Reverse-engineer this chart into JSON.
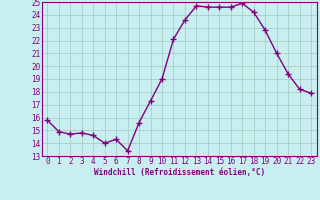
{
  "x": [
    0,
    1,
    2,
    3,
    4,
    5,
    6,
    7,
    8,
    9,
    10,
    11,
    12,
    13,
    14,
    15,
    16,
    17,
    18,
    19,
    20,
    21,
    22,
    23
  ],
  "y": [
    15.8,
    14.9,
    14.7,
    14.8,
    14.6,
    14.0,
    14.3,
    13.4,
    15.6,
    17.3,
    19.0,
    22.1,
    23.6,
    24.7,
    24.6,
    24.6,
    24.6,
    24.9,
    24.2,
    22.8,
    21.0,
    19.4,
    18.2,
    17.9
  ],
  "line_color": "#800080",
  "marker": "+",
  "marker_size": 4,
  "marker_lw": 1.0,
  "line_width": 1.0,
  "bg_color": "#c8eef0",
  "grid_color": "#a0c8c0",
  "xlabel": "Windchill (Refroidissement éolien,°C)",
  "xlabel_color": "#800080",
  "tick_color": "#800080",
  "xlim_min": -0.5,
  "xlim_max": 23.5,
  "ylim_min": 13,
  "ylim_max": 25,
  "yticks": [
    13,
    14,
    15,
    16,
    17,
    18,
    19,
    20,
    21,
    22,
    23,
    24,
    25
  ],
  "xticks": [
    0,
    1,
    2,
    3,
    4,
    5,
    6,
    7,
    8,
    9,
    10,
    11,
    12,
    13,
    14,
    15,
    16,
    17,
    18,
    19,
    20,
    21,
    22,
    23
  ],
  "tick_fontsize": 5.5,
  "xlabel_fontsize": 5.5
}
